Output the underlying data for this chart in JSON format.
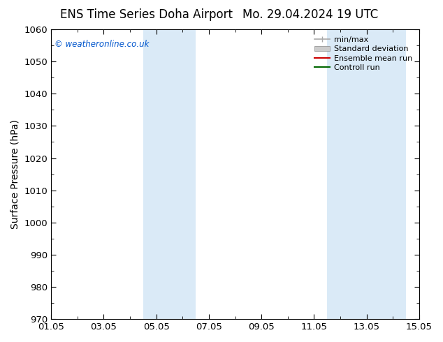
{
  "title_left": "ENS Time Series Doha Airport",
  "title_right": "Mo. 29.04.2024 19 UTC",
  "ylabel": "Surface Pressure (hPa)",
  "ylim": [
    970,
    1060
  ],
  "yticks": [
    970,
    980,
    990,
    1000,
    1010,
    1020,
    1030,
    1040,
    1050,
    1060
  ],
  "xlim": [
    0,
    14
  ],
  "xtick_labels": [
    "01.05",
    "03.05",
    "05.05",
    "07.05",
    "09.05",
    "11.05",
    "13.05",
    "15.05"
  ],
  "xtick_positions": [
    0,
    2,
    4,
    6,
    8,
    10,
    12,
    14
  ],
  "watermark": "© weatheronline.co.uk",
  "watermark_color": "#0055cc",
  "background_color": "#ffffff",
  "plot_bg_color": "#ffffff",
  "shaded_bands": [
    {
      "x_start": 3.5,
      "x_end": 5.5,
      "color": "#daeaf7"
    },
    {
      "x_start": 10.5,
      "x_end": 13.5,
      "color": "#daeaf7"
    }
  ],
  "legend_items": [
    {
      "label": "min/max",
      "color": "#aaaaaa",
      "type": "hline"
    },
    {
      "label": "Standard deviation",
      "color": "#cccccc",
      "type": "patch"
    },
    {
      "label": "Ensemble mean run",
      "color": "#cc0000",
      "type": "line"
    },
    {
      "label": "Controll run",
      "color": "#006600",
      "type": "line"
    }
  ],
  "tick_fontsize": 9.5,
  "label_fontsize": 10,
  "title_fontsize": 12
}
